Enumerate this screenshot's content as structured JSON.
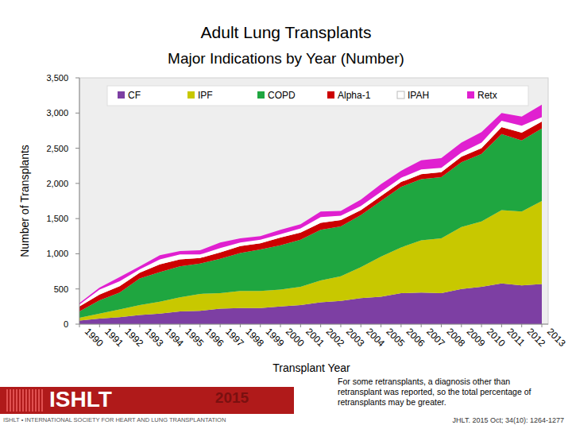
{
  "chart_data": {
    "type": "area",
    "stacked": true,
    "title": "Adult Lung Transplants",
    "subtitle": "Major Indications by Year (Number)",
    "x_label": "Transplant Year",
    "y_label": "Number of Transplants",
    "annotations": {
      "footnote": "For some retransplants, a diagnosis other than retransplant was reported, so the total percentage of retransplants may be greater.",
      "citation": "JHLT. 2015 Oct; 34(10): 1264-1277",
      "logo": "ISHLT",
      "society": "ISHLT • INTERNATIONAL SOCIETY FOR HEART AND LUNG TRANSPLANTATION",
      "year": "2015"
    },
    "legend": "top",
    "categories": [
      "1990",
      "1991",
      "1992",
      "1993",
      "1994",
      "1995",
      "1996",
      "1997",
      "1998",
      "1999",
      "2000",
      "2001",
      "2002",
      "2003",
      "2004",
      "2005",
      "2006",
      "2007",
      "2008",
      "2009",
      "2010",
      "2011",
      "2012",
      "2013"
    ],
    "series": [
      {
        "name": "CF",
        "color": "#7d3fa3",
        "values": [
          50,
          80,
          100,
          130,
          150,
          180,
          190,
          220,
          230,
          230,
          250,
          270,
          310,
          330,
          370,
          390,
          440,
          450,
          440,
          500,
          530,
          580,
          550,
          570
        ]
      },
      {
        "name": "IPF",
        "color": "#c8c800",
        "values": [
          40,
          70,
          110,
          140,
          170,
          200,
          240,
          220,
          240,
          240,
          240,
          260,
          310,
          350,
          440,
          570,
          650,
          740,
          780,
          880,
          930,
          1040,
          1050,
          1180
        ]
      },
      {
        "name": "COPD",
        "color": "#1fa640",
        "values": [
          90,
          190,
          240,
          380,
          420,
          440,
          430,
          490,
          540,
          590,
          630,
          670,
          720,
          710,
          740,
          790,
          860,
          870,
          870,
          920,
          960,
          1080,
          1010,
          1030
        ]
      },
      {
        "name": "Alpha-1",
        "color": "#cc0000",
        "values": [
          70,
          80,
          90,
          80,
          110,
          100,
          80,
          90,
          100,
          90,
          110,
          100,
          100,
          90,
          70,
          70,
          70,
          70,
          70,
          80,
          80,
          100,
          110,
          100
        ]
      },
      {
        "name": "IPAH",
        "color": "#ffffff",
        "values": [
          30,
          70,
          70,
          50,
          70,
          70,
          50,
          60,
          50,
          50,
          50,
          60,
          80,
          60,
          60,
          60,
          60,
          70,
          60,
          60,
          80,
          90,
          100,
          60
        ]
      },
      {
        "name": "Retx",
        "color": "#e020d0",
        "values": [
          20,
          30,
          60,
          40,
          60,
          50,
          60,
          80,
          60,
          50,
          60,
          60,
          80,
          70,
          90,
          110,
          100,
          130,
          140,
          140,
          150,
          110,
          130,
          180
        ]
      }
    ],
    "ylim": [
      0,
      3500
    ],
    "yticks": [
      0,
      500,
      {
        "value": 1000,
        "label": "1,000"
      },
      {
        "value": 1500,
        "label": "1,500"
      },
      {
        "value": 2000,
        "label": "2,000"
      },
      {
        "value": 2500,
        "label": "2,500"
      },
      {
        "value": 3000,
        "label": "3,000"
      },
      {
        "value": 3500,
        "label": "3,500"
      }
    ],
    "grid": false
  }
}
